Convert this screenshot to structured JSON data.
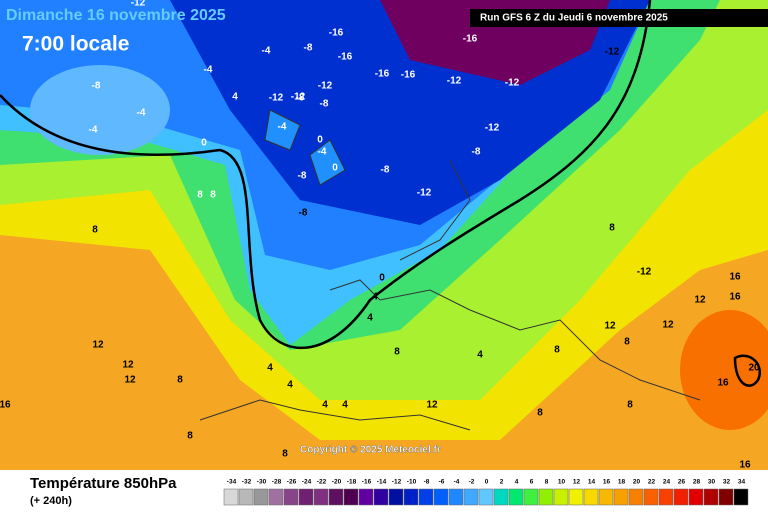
{
  "header": {
    "title": "Dimanche 16 novembre 2025",
    "time": "7:00 locale",
    "run": "Run GFS 6 Z du Jeudi 6 novembre 2025"
  },
  "footer": {
    "title": "Température 850hPa",
    "lead": "(+ 240h)",
    "copyright": "Copyright © 2025 Meteociel.fr"
  },
  "map_labels": [
    "-12",
    "-4",
    "-16",
    "-16",
    "-16",
    "-16",
    "-16",
    "-12",
    "-8",
    "-4",
    "-8",
    "-12",
    "-12",
    "-12",
    "-12",
    "-4",
    "-12",
    "-8",
    "-8",
    "-4",
    "0",
    "0",
    "-4",
    "-8",
    "-8",
    "-8",
    "-12",
    "-12",
    "-8",
    "-4",
    "0",
    "4",
    "0",
    "4",
    "4",
    "8",
    "8",
    "8",
    "12",
    "12",
    "12",
    "8",
    "4",
    "4",
    "8",
    "12",
    "8",
    "12",
    "16",
    "16",
    "20",
    "16",
    "16",
    "16",
    "8",
    "4",
    "4",
    "8",
    "12",
    "12",
    "8",
    "4",
    "8",
    "-12",
    "8",
    "8"
  ],
  "colorbar": {
    "ticks": [
      -34,
      -32,
      -30,
      -28,
      -26,
      -24,
      -22,
      -20,
      -18,
      -16,
      -14,
      -12,
      -10,
      -8,
      -6,
      -4,
      -2,
      0,
      2,
      4,
      6,
      8,
      10,
      12,
      14,
      16,
      18,
      20,
      22,
      24,
      26,
      28,
      30,
      32,
      34
    ],
    "colors": [
      "#d8d8d8",
      "#b8b8b8",
      "#989898",
      "#a070a0",
      "#884488",
      "#702070",
      "#803080",
      "#601060",
      "#500050",
      "#6000a0",
      "#3000a0",
      "#0010a0",
      "#0020c8",
      "#0040e8",
      "#0060ff",
      "#2088ff",
      "#40a8ff",
      "#60c8ff",
      "#00d8c0",
      "#00e870",
      "#40f040",
      "#90f000",
      "#c8f000",
      "#f0f000",
      "#f8d800",
      "#f8b800",
      "#f8a000",
      "#f88000",
      "#f86000",
      "#f84000",
      "#f02000",
      "#e00000",
      "#b00000",
      "#800000",
      "#000000"
    ]
  }
}
